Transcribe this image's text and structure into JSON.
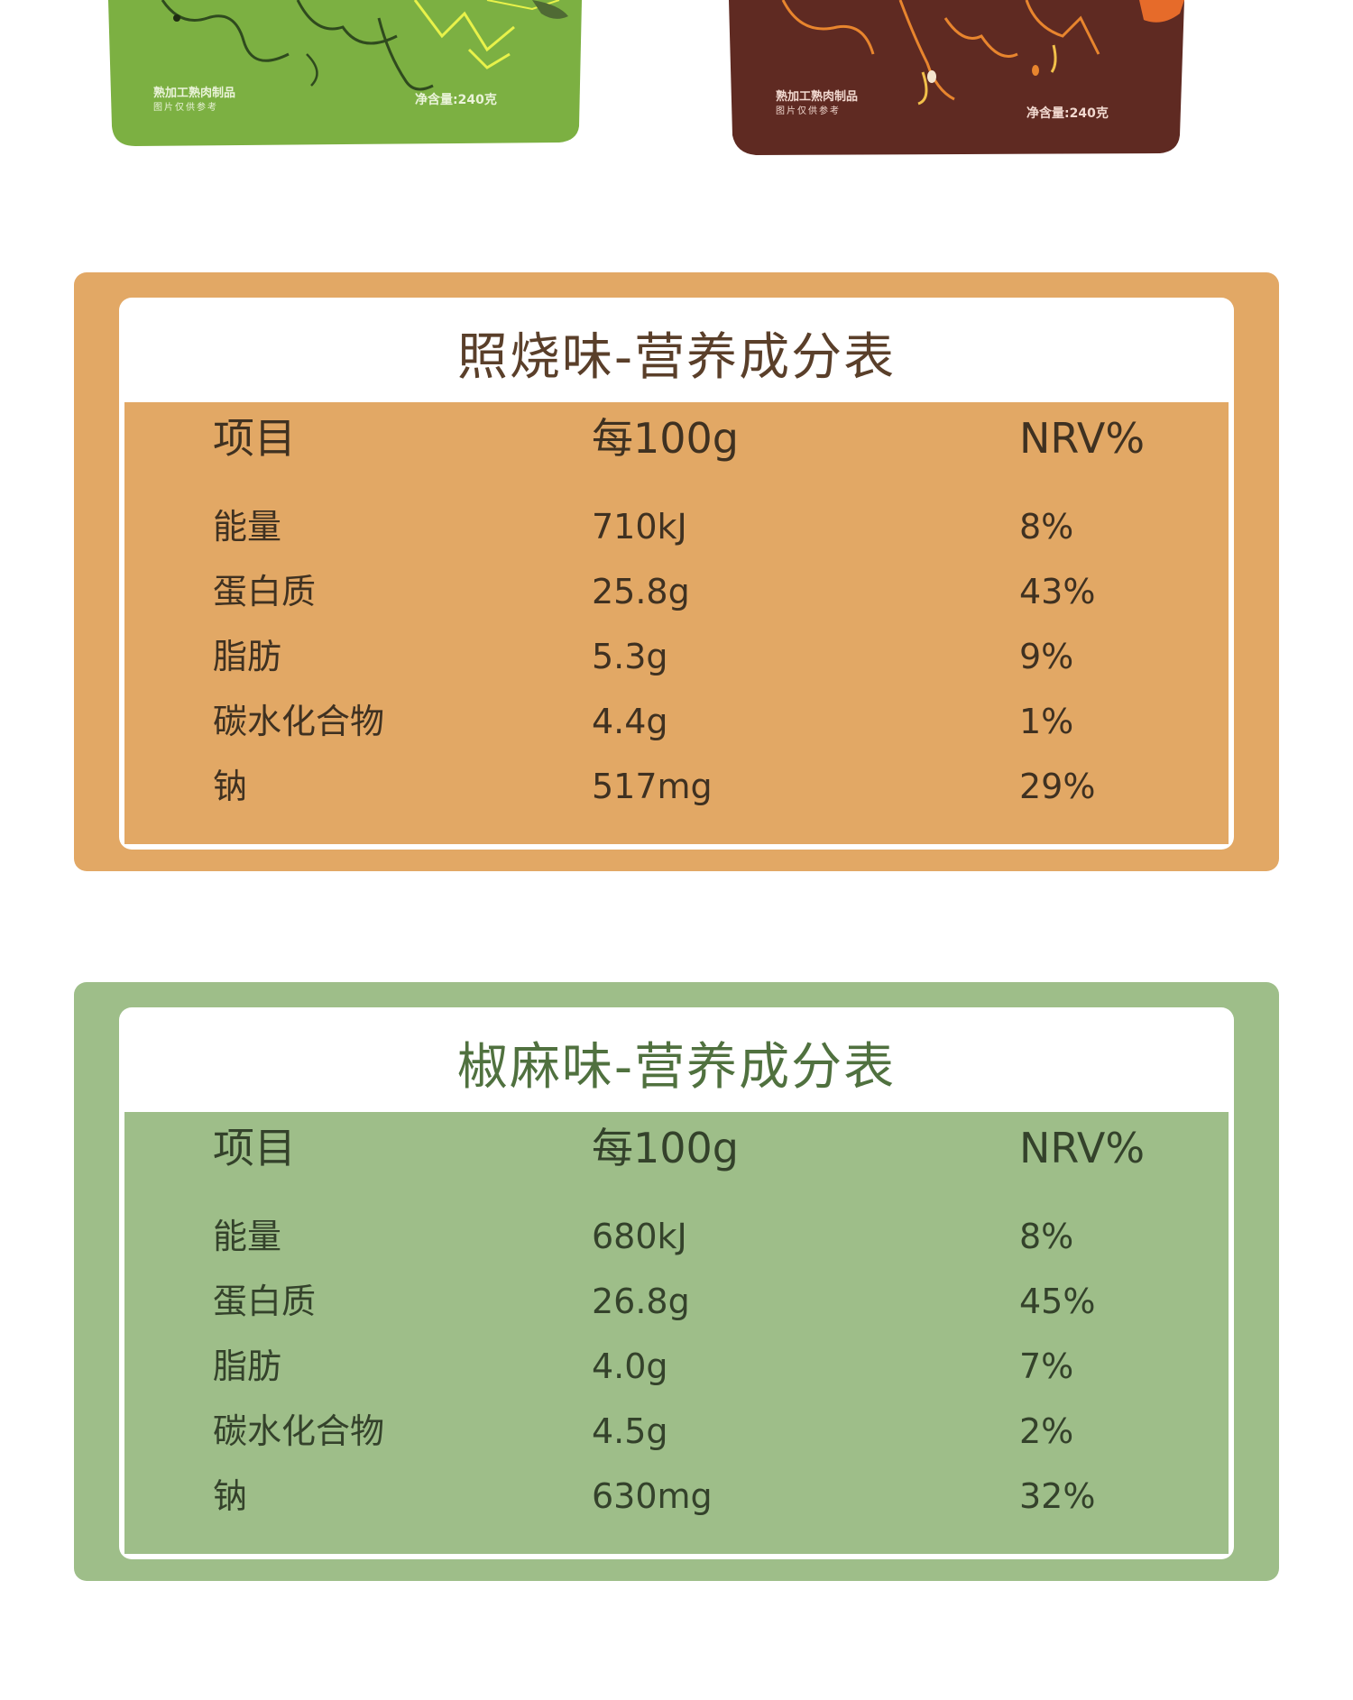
{
  "product_bags": [
    {
      "label_line1": "熟加工熟肉制品",
      "label_line2": "图片仅供参考",
      "weight": "净含量:240克",
      "color": "#7cb042"
    },
    {
      "label_line1": "熟加工熟肉制品",
      "label_line2": "图片仅供参考",
      "weight": "净含量:240克",
      "color": "#5f2a22"
    }
  ],
  "tables": [
    {
      "title": "照烧味-营养成分表",
      "headers": [
        "项目",
        "每100g",
        "NRV%"
      ],
      "rows": [
        [
          "能量",
          "710kJ",
          "8%"
        ],
        [
          "蛋白质",
          "25.8g",
          "43%"
        ],
        [
          "脂肪",
          "5.3g",
          "9%"
        ],
        [
          "碳水化合物",
          "4.4g",
          "1%"
        ],
        [
          "钠",
          "517mg",
          "29%"
        ]
      ],
      "accent_color": "#e2a865"
    },
    {
      "title": "椒麻味-营养成分表",
      "headers": [
        "项目",
        "每100g",
        "NRV%"
      ],
      "rows": [
        [
          "能量",
          "680kJ",
          "8%"
        ],
        [
          "蛋白质",
          "26.8g",
          "45%"
        ],
        [
          "脂肪",
          "4.0g",
          "7%"
        ],
        [
          "碳水化合物",
          "4.5g",
          "2%"
        ],
        [
          "钠",
          "630mg",
          "32%"
        ]
      ],
      "accent_color": "#9ebe89"
    }
  ]
}
